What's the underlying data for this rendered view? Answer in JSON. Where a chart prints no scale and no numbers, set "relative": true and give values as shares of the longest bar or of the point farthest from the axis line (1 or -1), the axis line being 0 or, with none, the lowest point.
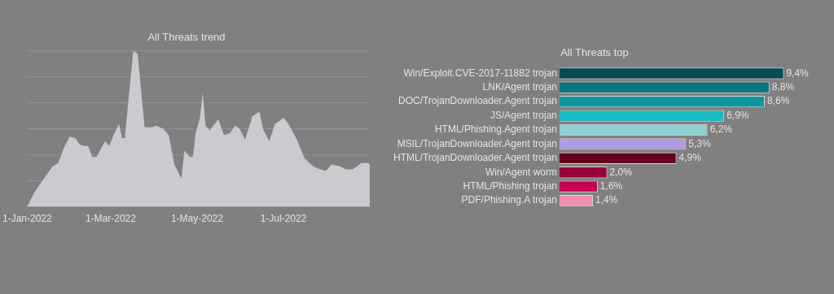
{
  "chart_data": [
    {
      "type": "area",
      "title": "All Threats trend",
      "relative": true,
      "grid": "y",
      "color": "#c9cbcf",
      "xlim": [
        "2022-01-01",
        "2022-08-31"
      ],
      "xticks": [
        {
          "value": "2022-01-01",
          "label": "1-Jan-2022"
        },
        {
          "value": "2022-03-01",
          "label": "1-Mar-2022"
        },
        {
          "value": "2022-05-01",
          "label": "1-May-2022"
        },
        {
          "value": "2022-07-01",
          "label": "1-Jul-2022"
        }
      ],
      "x": [
        "2022-01-01",
        "2022-01-06",
        "2022-01-12",
        "2022-01-19",
        "2022-01-23",
        "2022-01-27",
        "2022-01-31",
        "2022-02-04",
        "2022-02-07",
        "2022-02-10",
        "2022-02-13",
        "2022-02-16",
        "2022-02-19",
        "2022-02-25",
        "2022-02-28",
        "2022-03-03",
        "2022-03-07",
        "2022-03-09",
        "2022-03-11",
        "2022-03-14",
        "2022-03-17",
        "2022-03-20",
        "2022-03-25",
        "2022-03-30",
        "2022-04-02",
        "2022-04-07",
        "2022-04-11",
        "2022-04-15",
        "2022-04-20",
        "2022-04-22",
        "2022-04-26",
        "2022-04-28",
        "2022-04-30",
        "2022-05-03",
        "2022-05-05",
        "2022-05-07",
        "2022-05-10",
        "2022-05-16",
        "2022-05-20",
        "2022-05-24",
        "2022-05-28",
        "2022-05-31",
        "2022-06-04",
        "2022-06-09",
        "2022-06-14",
        "2022-06-17",
        "2022-06-21",
        "2022-06-25",
        "2022-07-01",
        "2022-07-04",
        "2022-07-10",
        "2022-07-16",
        "2022-07-22",
        "2022-07-27",
        "2022-07-31",
        "2022-08-04",
        "2022-08-10",
        "2022-08-14",
        "2022-08-19",
        "2022-08-25",
        "2022-08-30",
        "2022-08-31"
      ],
      "values": [
        0,
        0.09,
        0.17,
        0.26,
        0.28,
        0.38,
        0.45,
        0.44,
        0.4,
        0.39,
        0.39,
        0.32,
        0.32,
        0.42,
        0.39,
        0.46,
        0.53,
        0.44,
        0.44,
        0.73,
        1,
        0.98,
        0.51,
        0.51,
        0.52,
        0.5,
        0.46,
        0.27,
        0.18,
        0.36,
        0.32,
        0.32,
        0.47,
        0.57,
        0.73,
        0.52,
        0.49,
        0.56,
        0.46,
        0.47,
        0.52,
        0.5,
        0.43,
        0.58,
        0.61,
        0.49,
        0.42,
        0.53,
        0.57,
        0.54,
        0.44,
        0.31,
        0.26,
        0.24,
        0.23,
        0.27,
        0.26,
        0.24,
        0.24,
        0.28,
        0.28,
        0.27
      ]
    },
    {
      "type": "bar",
      "title": "All Threats top",
      "orientation": "horizontal",
      "categories": [
        "Win/Exploit.CVE-2017-11882 trojan",
        "LNK/Agent trojan",
        "DOC/TrojanDownloader.Agent trojan",
        "JS/Agent trojan",
        "HTML/Phishing.Agent trojan",
        "MSIL/TrojanDownloader.Agent trojan",
        "HTML/TrojanDownloader.Agent trojan",
        "Win/Agent worm",
        "HTML/Phishing trojan",
        "PDF/Phishing.A trojan"
      ],
      "values": [
        9.4,
        8.8,
        8.6,
        6.9,
        6.2,
        5.3,
        4.9,
        2.0,
        1.6,
        1.4
      ],
      "value_labels": [
        "9,4%",
        "8,8%",
        "8,6%",
        "6,9%",
        "6,2%",
        "5,3%",
        "4,9%",
        "2,0%",
        "1,6%",
        "1,4%"
      ],
      "colors": [
        "#064a52",
        "#0b7481",
        "#0d97a0",
        "#17bcc6",
        "#8fd0d2",
        "#b39ce0",
        "#63001f",
        "#98003a",
        "#c7004f",
        "#f58fb0"
      ]
    }
  ]
}
